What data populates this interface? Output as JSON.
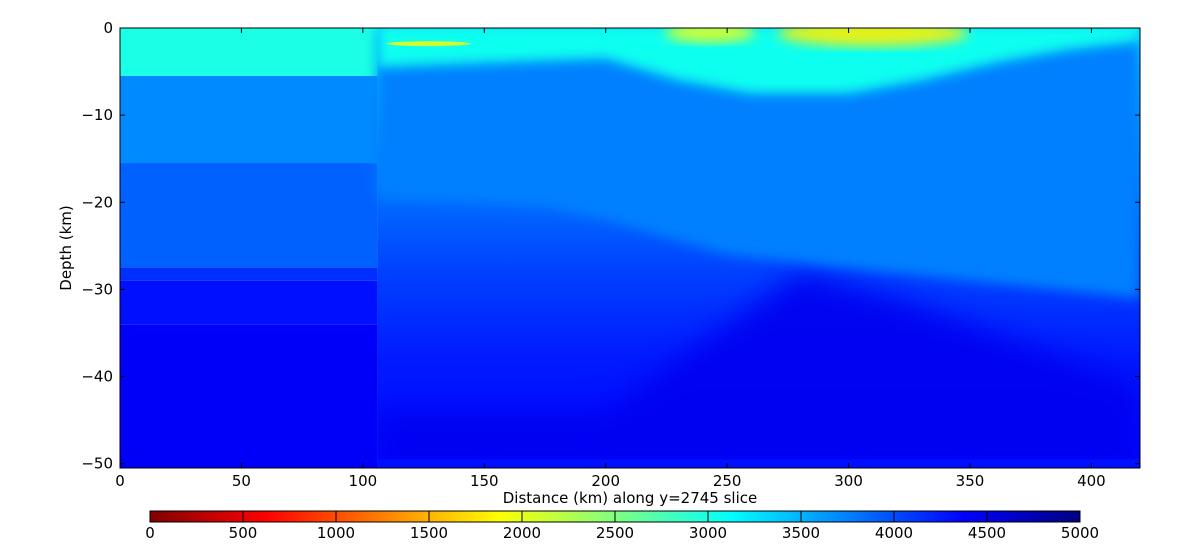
{
  "chart_data": {
    "type": "heatmap",
    "xlabel": "Distance (km) along y=2745 slice",
    "ylabel": "Depth (km)",
    "xlim": [
      0,
      420
    ],
    "ylim": [
      -50.5,
      0
    ],
    "xticks": [
      0,
      50,
      100,
      150,
      200,
      250,
      300,
      350,
      400
    ],
    "yticks": [
      0,
      -10,
      -20,
      -30,
      -40,
      -50
    ],
    "colorbar": {
      "range": [
        0,
        5000
      ],
      "ticks": [
        0,
        500,
        1000,
        1500,
        2000,
        2500,
        3000,
        3500,
        4000,
        4500,
        5000
      ],
      "colormap": "jet_r",
      "placement": "bottom"
    },
    "left_block": {
      "x_range": [
        0,
        106
      ],
      "layers": [
        {
          "depth_top": 0,
          "depth_bottom": -5.5,
          "value": 3000
        },
        {
          "depth_top": -5.5,
          "depth_bottom": -15.5,
          "value": 3700
        },
        {
          "depth_top": -15.5,
          "depth_bottom": -27.5,
          "value": 3900
        },
        {
          "depth_top": -27.5,
          "depth_bottom": -29,
          "value": 4150
        },
        {
          "depth_top": -29,
          "depth_bottom": -34,
          "value": 4300
        },
        {
          "depth_top": -34,
          "depth_bottom": -50.5,
          "value": 4400
        }
      ]
    },
    "right_block": {
      "x_range": [
        106,
        420
      ],
      "boundaries": [
        {
          "name": "surface_low_velocity_base",
          "x": [
            106,
            150,
            200,
            230,
            260,
            300,
            330,
            360,
            390,
            420
          ],
          "depth": [
            -4.5,
            -4.0,
            -3.5,
            -6.0,
            -7.5,
            -7.5,
            -6.0,
            -4.0,
            -2.5,
            -1.5
          ]
        },
        {
          "name": "mid_crust_base",
          "x": [
            106,
            150,
            175,
            200,
            250,
            300,
            350,
            420
          ],
          "depth": [
            -19.5,
            -20.0,
            -20.5,
            -22.0,
            -26.0,
            -27.5,
            -29.0,
            -31.0
          ]
        },
        {
          "name": "deep_gradient",
          "x": [
            106,
            200,
            280,
            320,
            360,
            420
          ],
          "depth": [
            -44.0,
            -44.0,
            -28.0,
            -31.0,
            -35.0,
            -41.0
          ]
        }
      ],
      "surface_anomalies": [
        {
          "x_center": 243,
          "depth": -0.5,
          "value": 2000
        },
        {
          "x_center": 310,
          "depth": -0.6,
          "value": 1800
        },
        {
          "x_center": 127,
          "depth": -1.8,
          "value": 2000
        }
      ]
    }
  }
}
